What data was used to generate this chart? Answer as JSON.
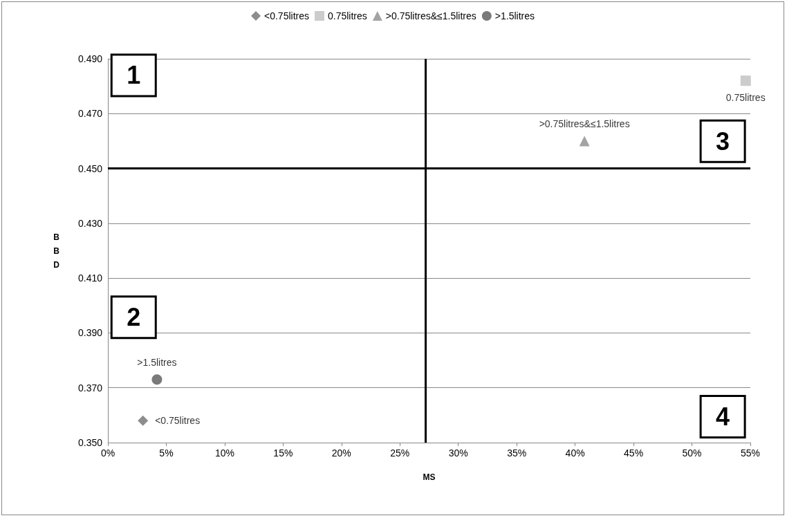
{
  "chart_data": {
    "type": "scatter",
    "xlabel": "MS",
    "ylabel": "BBD",
    "series": [
      {
        "name": "<0.75litres",
        "color": "#707070",
        "marker": "diamond",
        "x": [
          3.0
        ],
        "values": [
          0.358
        ]
      },
      {
        "name": "0.75litres",
        "color": "#bfbfbf",
        "marker": "square",
        "x": [
          54.6
        ],
        "values": [
          0.482
        ]
      },
      {
        "name": ">0.75litres&≤1.5litres",
        "color": "#8c8c8c",
        "marker": "triangle",
        "x": [
          40.8
        ],
        "values": [
          0.46
        ]
      },
      {
        "name": ">1.5litres",
        "color": "#595959",
        "marker": "circle",
        "x": [
          4.2
        ],
        "values": [
          0.373
        ]
      }
    ],
    "xlim": [
      0,
      55
    ],
    "xticks": [
      {
        "value": 0,
        "label": "0%"
      },
      {
        "value": 5,
        "label": "5%"
      },
      {
        "value": 10,
        "label": "10%"
      },
      {
        "value": 15,
        "label": "15%"
      },
      {
        "value": 20,
        "label": "20%"
      },
      {
        "value": 25,
        "label": "25%"
      },
      {
        "value": 30,
        "label": "30%"
      },
      {
        "value": 35,
        "label": "35%"
      },
      {
        "value": 40,
        "label": "40%"
      },
      {
        "value": 45,
        "label": "45%"
      },
      {
        "value": 50,
        "label": "50%"
      },
      {
        "value": 55,
        "label": "55%"
      }
    ],
    "ylim": [
      0.35,
      0.49
    ],
    "yticks": [
      {
        "value": 0.35,
        "label": "0.350"
      },
      {
        "value": 0.37,
        "label": "0.370"
      },
      {
        "value": 0.39,
        "label": "0.390"
      },
      {
        "value": 0.41,
        "label": "0.410"
      },
      {
        "value": 0.43,
        "label": "0.430"
      },
      {
        "value": 0.45,
        "label": "0.450"
      },
      {
        "value": 0.47,
        "label": "0.470"
      },
      {
        "value": 0.49,
        "label": "0.490"
      }
    ],
    "ref_lines": [
      {
        "axis": "x",
        "value": 27.2,
        "color": "#000000"
      },
      {
        "axis": "y",
        "value": 0.45,
        "color": "#000000"
      }
    ],
    "annotations": [
      "1",
      "2",
      "3",
      "4"
    ],
    "grid": "y",
    "legend": "top",
    "data_labels": "name"
  }
}
